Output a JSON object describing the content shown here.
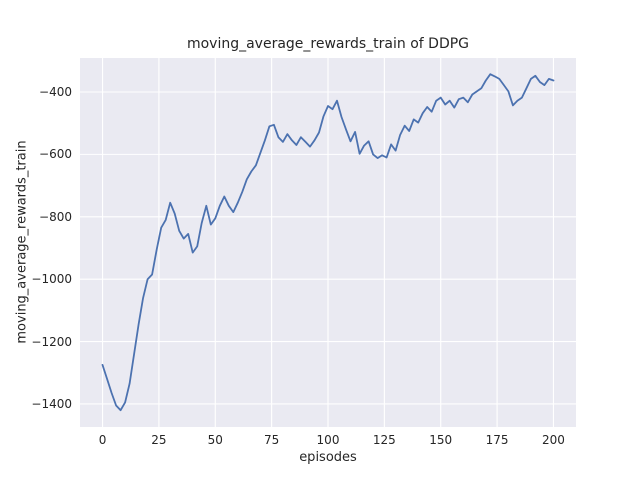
{
  "chart_data": {
    "type": "line",
    "title": "moving_average_rewards_train of DDPG",
    "xlabel": "episodes",
    "ylabel": "moving_average_rewards_train",
    "xlim": [
      -10,
      210
    ],
    "ylim": [
      -1474,
      -291
    ],
    "grid": true,
    "legend": "none",
    "style": "seaborn-darkgrid",
    "colors": {
      "line": "#4c72b0",
      "plot_bg": "#eaeaf2",
      "grid": "#ffffff",
      "text": "#262626",
      "figure_bg": "#ffffff"
    },
    "xticks": {
      "values": [
        0,
        25,
        50,
        75,
        100,
        125,
        150,
        175,
        200
      ],
      "labels": [
        "0",
        "25",
        "50",
        "75",
        "100",
        "125",
        "150",
        "175",
        "200"
      ]
    },
    "yticks": {
      "values": [
        -1400,
        -1200,
        -1000,
        -800,
        -600,
        -400
      ],
      "labels": [
        "−1400",
        "−1200",
        "−1000",
        "−800",
        "−600",
        "−400"
      ]
    },
    "series": [
      {
        "name": "moving_average_rewards_train",
        "x": [
          0,
          2,
          4,
          6,
          8,
          10,
          12,
          14,
          16,
          18,
          20,
          22,
          24,
          26,
          28,
          30,
          32,
          34,
          36,
          38,
          40,
          42,
          44,
          46,
          48,
          50,
          52,
          54,
          56,
          58,
          60,
          62,
          64,
          66,
          68,
          70,
          72,
          74,
          76,
          78,
          80,
          82,
          84,
          86,
          88,
          90,
          92,
          94,
          96,
          98,
          100,
          102,
          104,
          106,
          108,
          110,
          112,
          114,
          116,
          118,
          120,
          122,
          124,
          126,
          128,
          130,
          132,
          134,
          136,
          138,
          140,
          142,
          144,
          146,
          148,
          150,
          152,
          154,
          156,
          158,
          160,
          162,
          164,
          166,
          168,
          170,
          172,
          174,
          176,
          178,
          180,
          182,
          184,
          186,
          188,
          190,
          192,
          194,
          196,
          198,
          200
        ],
        "y": [
          -1275,
          -1320,
          -1365,
          -1405,
          -1420,
          -1395,
          -1335,
          -1240,
          -1145,
          -1060,
          -1000,
          -985,
          -905,
          -835,
          -810,
          -755,
          -790,
          -845,
          -870,
          -855,
          -915,
          -895,
          -820,
          -765,
          -825,
          -805,
          -765,
          -735,
          -765,
          -785,
          -755,
          -720,
          -680,
          -655,
          -635,
          -595,
          -555,
          -510,
          -505,
          -545,
          -560,
          -535,
          -555,
          -570,
          -545,
          -560,
          -575,
          -555,
          -530,
          -478,
          -445,
          -455,
          -428,
          -480,
          -520,
          -558,
          -528,
          -598,
          -572,
          -558,
          -600,
          -612,
          -603,
          -610,
          -568,
          -588,
          -538,
          -508,
          -525,
          -488,
          -498,
          -468,
          -448,
          -463,
          -428,
          -418,
          -440,
          -428,
          -450,
          -423,
          -418,
          -433,
          -408,
          -398,
          -388,
          -363,
          -343,
          -350,
          -358,
          -378,
          -398,
          -443,
          -428,
          -418,
          -388,
          -358,
          -348,
          -368,
          -378,
          -358,
          -363
        ]
      }
    ]
  }
}
